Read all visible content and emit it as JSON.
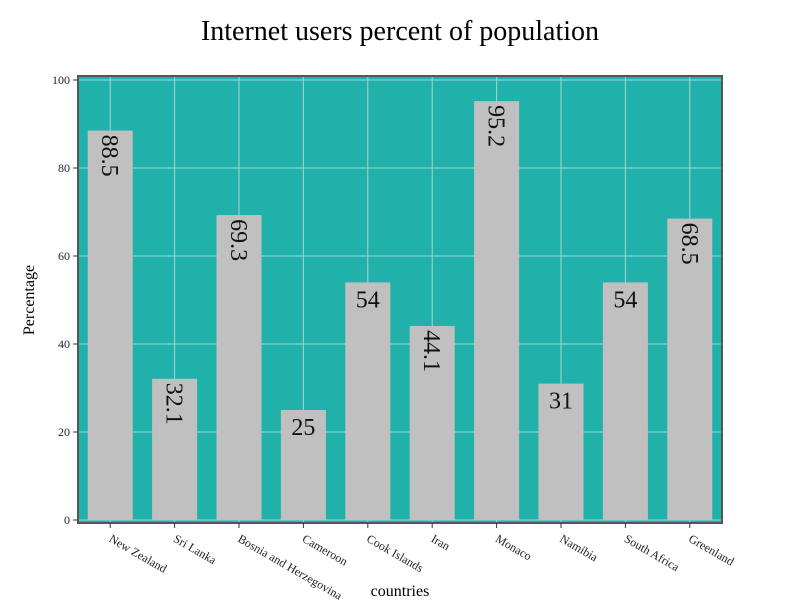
{
  "chart_data": {
    "type": "bar",
    "title": "Internet users percent of population",
    "xlabel": "countries",
    "ylabel": "Percentage",
    "categories": [
      "New Zealand",
      "Sri Lanka",
      "Bosnia and Herzegovina",
      "Cameroon",
      "Cook Islands",
      "Iran",
      "Monaco",
      "Namibia",
      "South Africa",
      "Greenland"
    ],
    "values": [
      88.5,
      32.1,
      69.3,
      25,
      54,
      44.1,
      95.2,
      31,
      54,
      68.5
    ],
    "value_labels": [
      "88.5",
      "32.1",
      "69.3",
      "25",
      "54",
      "44.1",
      "95.2",
      "31",
      "54",
      "68.5"
    ],
    "label_rotated": [
      true,
      true,
      true,
      false,
      false,
      true,
      true,
      false,
      false,
      true
    ],
    "ylim": [
      0,
      100
    ],
    "yticks": [
      0,
      20,
      40,
      60,
      80,
      100
    ],
    "grid": true,
    "colors": {
      "plot_background": "#20b2aa",
      "bar_fill": "#c0c0c0",
      "grid_line": "#a9d4cf",
      "frame": "#555555"
    }
  }
}
